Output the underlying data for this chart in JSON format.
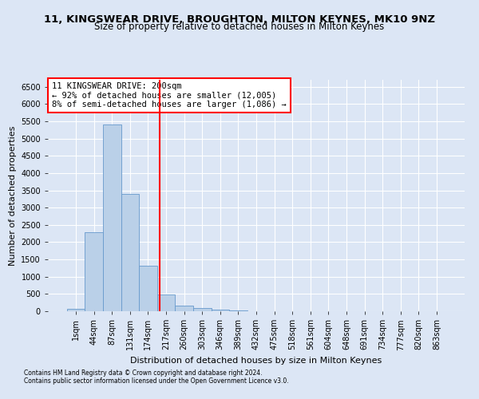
{
  "title": "11, KINGSWEAR DRIVE, BROUGHTON, MILTON KEYNES, MK10 9NZ",
  "subtitle": "Size of property relative to detached houses in Milton Keynes",
  "xlabel": "Distribution of detached houses by size in Milton Keynes",
  "ylabel": "Number of detached properties",
  "footnote1": "Contains HM Land Registry data © Crown copyright and database right 2024.",
  "footnote2": "Contains public sector information licensed under the Open Government Licence v3.0.",
  "bar_labels": [
    "1sqm",
    "44sqm",
    "87sqm",
    "131sqm",
    "174sqm",
    "217sqm",
    "260sqm",
    "303sqm",
    "346sqm",
    "389sqm",
    "432sqm",
    "475sqm",
    "518sqm",
    "561sqm",
    "604sqm",
    "648sqm",
    "691sqm",
    "734sqm",
    "777sqm",
    "820sqm",
    "863sqm"
  ],
  "bar_values": [
    80,
    2280,
    5400,
    3400,
    1320,
    480,
    165,
    90,
    50,
    30,
    10,
    5,
    3,
    2,
    1,
    1,
    1,
    1,
    1,
    1,
    1
  ],
  "bar_color": "#bad0e8",
  "bar_edge_color": "#6699cc",
  "vline_x": 4.65,
  "vline_color": "red",
  "annotation_text": "11 KINGSWEAR DRIVE: 200sqm\n← 92% of detached houses are smaller (12,005)\n8% of semi-detached houses are larger (1,086) →",
  "annotation_box_color": "white",
  "annotation_box_edge": "red",
  "ylim": [
    0,
    6700
  ],
  "yticks": [
    0,
    500,
    1000,
    1500,
    2000,
    2500,
    3000,
    3500,
    4000,
    4500,
    5000,
    5500,
    6000,
    6500
  ],
  "bg_color": "#dce6f5",
  "plot_bg_color": "#dce6f5",
  "title_fontsize": 9.5,
  "subtitle_fontsize": 8.5,
  "ylabel_fontsize": 8,
  "xlabel_fontsize": 8,
  "tick_fontsize": 7,
  "annot_fontsize": 7.5,
  "footnote_fontsize": 5.5
}
